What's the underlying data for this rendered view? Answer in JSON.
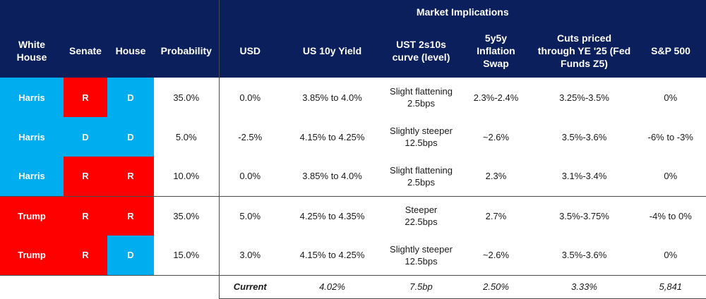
{
  "headers": {
    "super": "Market Implications",
    "white_house": "White House",
    "senate": "Senate",
    "house": "House",
    "probability": "Probability",
    "usd": "USD",
    "us10y": "US 10y Yield",
    "curve": "UST 2s10s curve (level)",
    "inflation": "5y5y Inflation Swap",
    "cuts": "Cuts priced through YE '25 (Fed Funds Z5)",
    "sp500": "S&P 500"
  },
  "rows": [
    {
      "white_house": "Harris",
      "senate": "R",
      "house": "D",
      "probability": "35.0%",
      "usd": "0.0%",
      "us10y": "3.85% to 4.0%",
      "curve_line1": "Slight flattening",
      "curve_line2": "2.5bps",
      "inflation": "2.3%-2.4%",
      "cuts": "3.25%-3.5%",
      "sp500": "0%"
    },
    {
      "white_house": "Harris",
      "senate": "D",
      "house": "D",
      "probability": "5.0%",
      "usd": "-2.5%",
      "us10y": "4.15% to 4.25%",
      "curve_line1": "Slightly steeper",
      "curve_line2": "12.5bps",
      "inflation": "~2.6%",
      "cuts": "3.5%-3.6%",
      "sp500": "-6% to -3%"
    },
    {
      "white_house": "Harris",
      "senate": "R",
      "house": "R",
      "probability": "10.0%",
      "usd": "0.0%",
      "us10y": "3.85% to 4.0%",
      "curve_line1": "Slight flattening",
      "curve_line2": "2.5bps",
      "inflation": "2.3%",
      "cuts": "3.1%-3.4%",
      "sp500": "0%"
    },
    {
      "white_house": "Trump",
      "senate": "R",
      "house": "R",
      "probability": "35.0%",
      "usd": "5.0%",
      "us10y": "4.25% to 4.35%",
      "curve_line1": "Steeper",
      "curve_line2": "22.5bps",
      "inflation": "2.7%",
      "cuts": "3.5%-3.75%",
      "sp500": "-4% to 0%"
    },
    {
      "white_house": "Trump",
      "senate": "R",
      "house": "D",
      "probability": "15.0%",
      "usd": "3.0%",
      "us10y": "4.15% to 4.25%",
      "curve_line1": "Slightly steeper",
      "curve_line2": "12.5bps",
      "inflation": "~2.6%",
      "cuts": "3.5%-3.6%",
      "sp500": "0%"
    }
  ],
  "current": {
    "label": "Current",
    "us10y": "4.02%",
    "curve": "7.5bp",
    "inflation": "2.50%",
    "cuts": "3.33%",
    "sp500": "5,841"
  },
  "colors": {
    "header_bg": "#0b1f5c",
    "harris_blue": "#00aeef",
    "democrat_blue": "#00aeef",
    "trump_red": "#ff0000",
    "republican_red": "#ff0000"
  }
}
